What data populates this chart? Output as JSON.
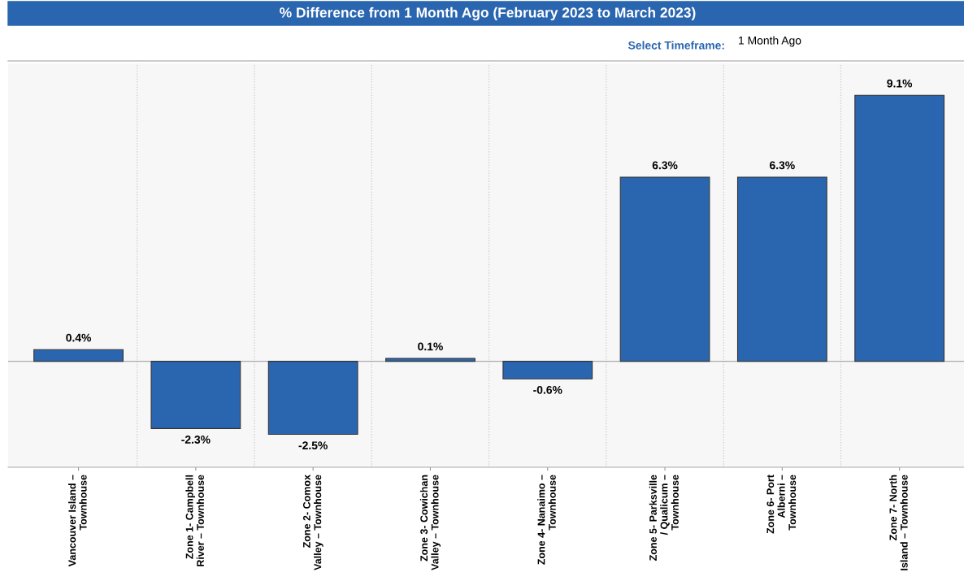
{
  "chart_data": {
    "type": "bar",
    "title": "% Difference from 1 Month Ago (February 2023 to March 2023)",
    "annotations": [
      "Select Timeframe:",
      "1 Month Ago"
    ],
    "categories": [
      "Vancouver Island – Townhouse",
      "Zone 1- Campbell River – Townhouse",
      "Zone 2- Comox Valley – Townhouse",
      "Zone 3- Cowichan Valley – Townhouse",
      "Zone 4- Nanaimo – Townhouse",
      "Zone 5- Parksville / Qualicum – Townhouse",
      "Zone 6- Port Alberni – Townhouse",
      "Zone 7- North Island – Townhouse"
    ],
    "values": [
      0.4,
      -2.3,
      -2.5,
      0.1,
      -0.6,
      6.3,
      6.3,
      9.1
    ],
    "value_labels": [
      "0.4%",
      "-2.3%",
      "-2.5%",
      "0.1%",
      "-0.6%",
      "6.3%",
      "6.3%",
      "9.1%"
    ],
    "color": "#2a66b0",
    "grid": "x"
  }
}
